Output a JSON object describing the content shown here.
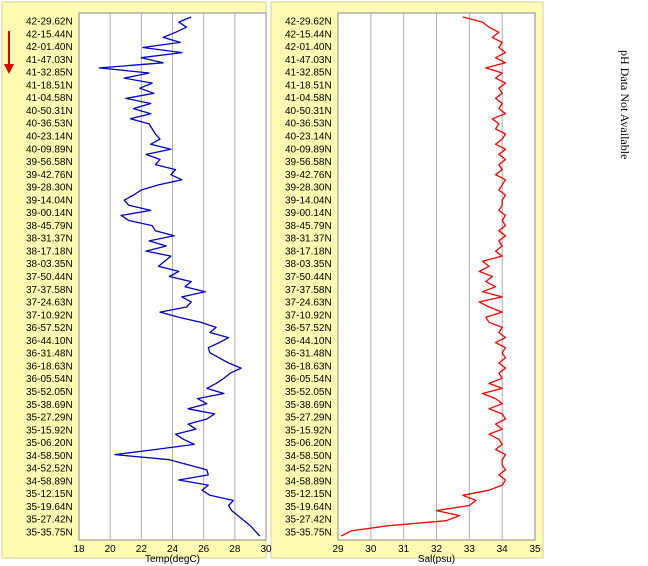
{
  "side_note": "pH Data Not Available",
  "colors": {
    "panel_bg": "#fffbb2",
    "plot_bg": "#ffffff",
    "temp_line": "#0000cc",
    "sal_line": "#ff0000",
    "arrow": "#e00000",
    "grid": "#b0b0b0"
  },
  "icons": {
    "direction": "down-arrow-icon"
  },
  "chart_data": [
    {
      "type": "line",
      "xlabel": "Temp(degC)",
      "xlim": [
        18,
        30
      ],
      "xticks": [
        "18",
        "20",
        "22",
        "24",
        "26",
        "28",
        "30"
      ],
      "ylabel": "",
      "ylim_labels": [
        "42-29.62N",
        "42-15.44N",
        "42-01.40N",
        "41-47.03N",
        "41-32.85N",
        "41-18.51N",
        "41-04.58N",
        "40-50.31N",
        "40-36.53N",
        "40-23.14N",
        "40-09.89N",
        "39-56.58N",
        "39-42.76N",
        "39-28.30N",
        "39-14.04N",
        "39-00.14N",
        "38-45.79N",
        "38-31.37N",
        "38-17.18N",
        "38-03.35N",
        "37-50.44N",
        "37-37.58N",
        "37-24.63N",
        "37-10.92N",
        "36-57.52N",
        "36-44.10N",
        "36-31.48N",
        "36-18.63N",
        "36-05.54N",
        "35-52.05N",
        "35-38.69N",
        "35-27.29N",
        "35-15.92N",
        "35-06.20N",
        "34-58.50N",
        "34-52.52N",
        "34-58.89N",
        "35-12.15N",
        "35-19.64N",
        "35-27.42N",
        "35-35.75N"
      ],
      "grid": true,
      "series": [
        {
          "values": [
            25.2,
            24.4,
            24.9,
            24.2,
            23.4,
            24.5,
            22.1,
            24.6,
            22.0,
            23.4,
            19.3,
            22.5,
            20.9,
            22.7,
            21.9,
            22.8,
            21.0,
            22.6,
            21.5,
            22.6,
            21.3,
            22.5,
            22.7,
            22.9,
            23.2,
            22.6,
            23.9,
            22.3,
            23.2,
            22.9,
            24.2,
            23.9,
            24.6,
            23.1,
            22.0,
            21.5,
            20.9,
            21.2,
            22.6,
            20.7,
            21.2,
            22.7,
            22.9,
            24.1,
            22.5,
            23.6,
            22.3,
            23.9,
            23.5,
            23.1,
            24.4,
            23.8,
            25.2,
            24.8,
            26.1,
            24.6,
            25.2,
            24.9,
            23.2,
            24.4,
            25.8,
            26.8,
            26.4,
            27.6,
            27.0,
            26.3,
            26.4,
            27.0,
            27.6,
            28.4,
            27.7,
            27.3,
            26.8,
            26.2,
            27.3,
            25.6,
            26.2,
            25.0,
            26.7,
            26.2,
            25.0,
            25.5,
            24.2,
            24.7,
            25.4,
            22.9,
            20.3,
            23.8,
            25.0,
            26.2,
            26.3,
            24.4,
            26.3,
            25.9,
            26.4,
            27.9,
            27.6,
            27.8,
            28.2,
            28.6,
            29.0,
            29.3,
            29.6
          ]
        }
      ]
    },
    {
      "type": "line",
      "xlabel": "Sal(psu)",
      "xlim": [
        29,
        35
      ],
      "xticks": [
        "29",
        "30",
        "31",
        "32",
        "33",
        "34",
        "35"
      ],
      "ylabel": "",
      "grid": true,
      "series": [
        {
          "values": [
            32.8,
            33.4,
            33.6,
            33.9,
            33.7,
            34.0,
            33.9,
            34.1,
            33.8,
            34.1,
            33.5,
            34.0,
            33.8,
            34.1,
            33.9,
            34.0,
            33.8,
            34.0,
            33.9,
            34.1,
            33.7,
            33.9,
            33.8,
            34.1,
            34.0,
            33.8,
            34.1,
            33.9,
            34.1,
            33.9,
            34.0,
            33.8,
            34.1,
            34.0,
            33.9,
            34.1,
            34.0,
            34.0,
            33.9,
            34.1,
            34.0,
            34.1,
            33.9,
            34.1,
            33.9,
            34.0,
            33.8,
            34.0,
            33.4,
            33.6,
            33.3,
            33.7,
            33.5,
            33.8,
            33.4,
            34.0,
            33.3,
            33.6,
            34.0,
            33.5,
            33.6,
            34.0,
            33.9,
            34.1,
            33.8,
            34.1,
            34.0,
            34.1,
            33.9,
            34.1,
            33.9,
            34.0,
            33.6,
            34.0,
            33.4,
            33.8,
            34.0,
            33.6,
            34.0,
            34.1,
            33.8,
            34.0,
            33.6,
            33.9,
            34.0,
            33.8,
            34.1,
            34.0,
            34.0,
            34.1,
            33.9,
            34.1,
            34.0,
            33.6,
            32.8,
            33.2,
            33.0,
            32.0,
            32.7,
            32.3,
            30.5,
            29.4,
            29.1
          ]
        }
      ]
    }
  ]
}
